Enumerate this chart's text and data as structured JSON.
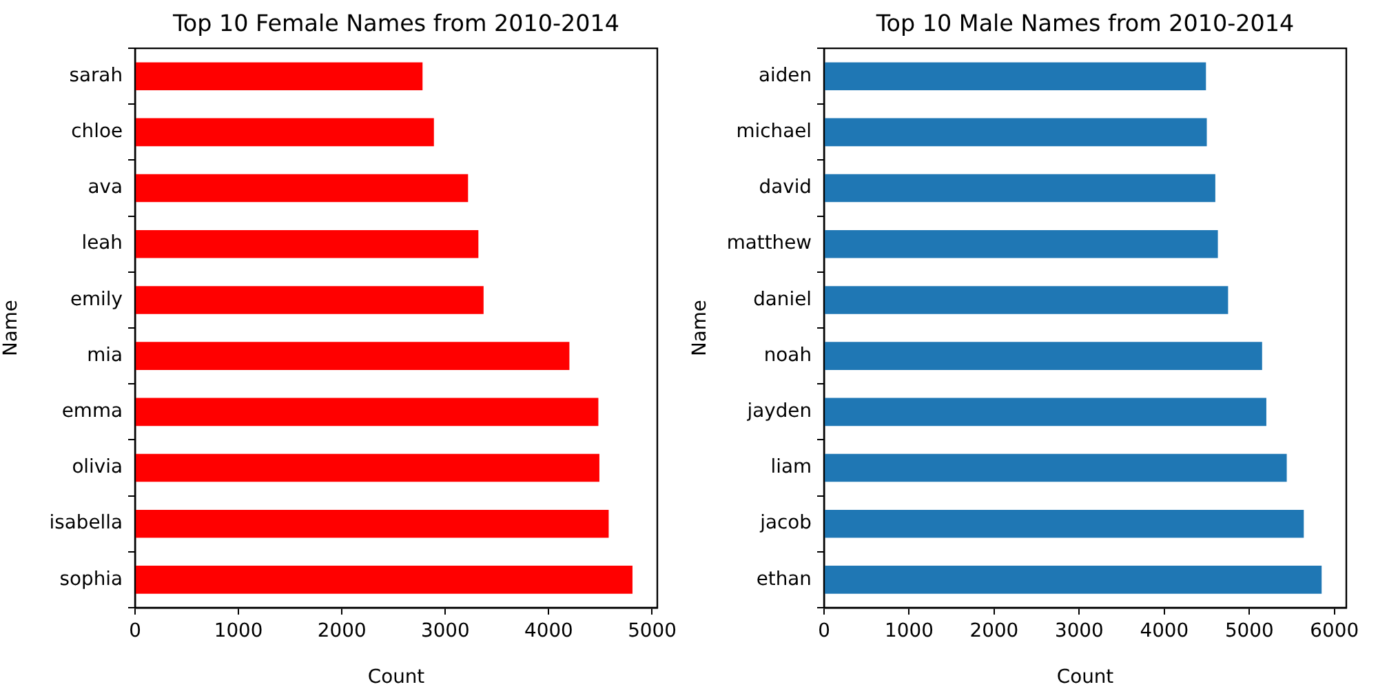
{
  "chart_data": [
    {
      "type": "bar",
      "orientation": "horizontal",
      "title": "Top 10 Female Names from 2010-2014",
      "xlabel": "Count",
      "ylabel": "Name",
      "categories": [
        "sarah",
        "chloe",
        "ava",
        "leah",
        "emily",
        "mia",
        "emma",
        "olivia",
        "isabella",
        "sophia"
      ],
      "values": [
        2780,
        2890,
        3220,
        3320,
        3370,
        4200,
        4480,
        4490,
        4580,
        4810
      ],
      "color": "#ff0000",
      "xlim": [
        0,
        5050
      ],
      "xticks": [
        0,
        1000,
        2000,
        3000,
        4000,
        5000
      ]
    },
    {
      "type": "bar",
      "orientation": "horizontal",
      "title": "Top 10 Male Names from 2010-2014",
      "xlabel": "Count",
      "ylabel": "Name",
      "categories": [
        "aiden",
        "michael",
        "david",
        "matthew",
        "daniel",
        "noah",
        "jayden",
        "liam",
        "jacob",
        "ethan"
      ],
      "values": [
        4490,
        4500,
        4600,
        4630,
        4750,
        5150,
        5200,
        5440,
        5640,
        5850
      ],
      "color": "#1f77b4",
      "xlim": [
        0,
        6140
      ],
      "xticks": [
        0,
        1000,
        2000,
        3000,
        4000,
        5000,
        6000
      ]
    }
  ]
}
